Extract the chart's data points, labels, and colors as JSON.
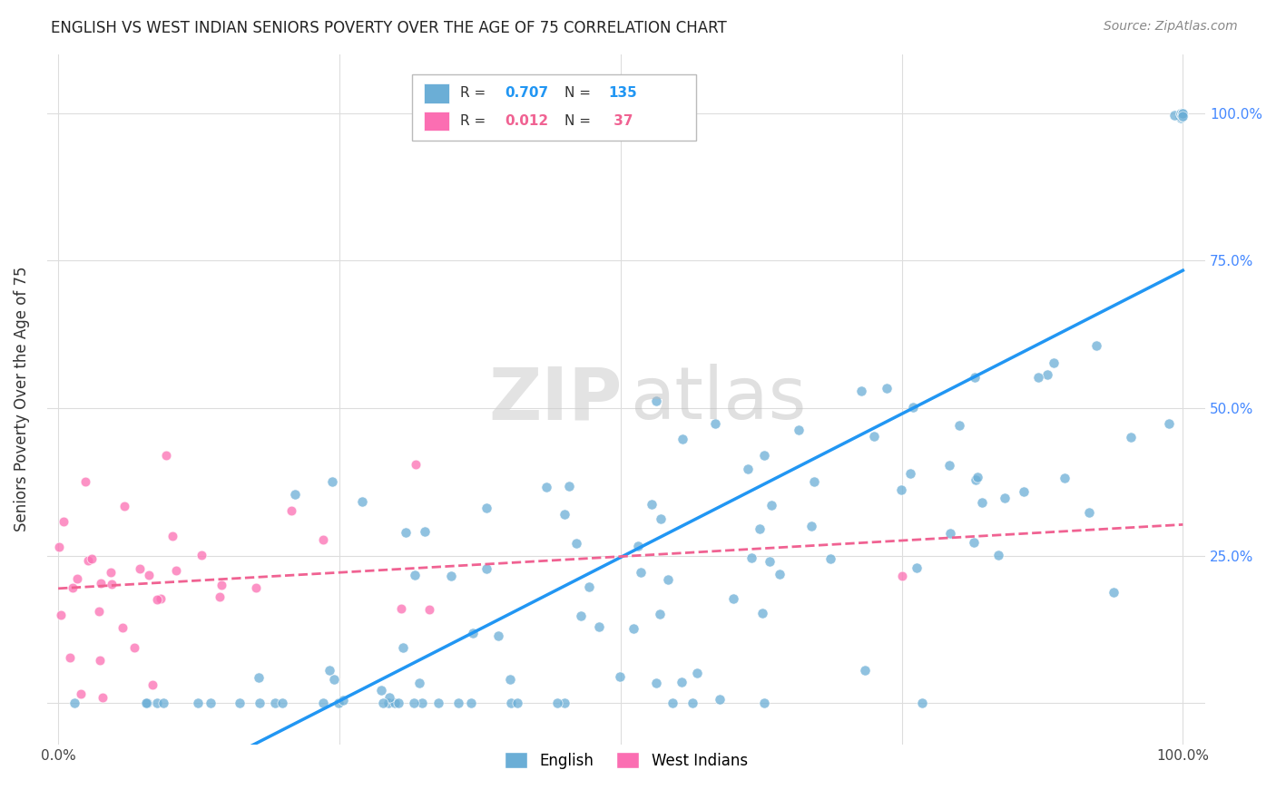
{
  "title": "ENGLISH VS WEST INDIAN SENIORS POVERTY OVER THE AGE OF 75 CORRELATION CHART",
  "source": "Source: ZipAtlas.com",
  "ylabel": "Seniors Poverty Over the Age of 75",
  "bg_color": "#ffffff",
  "english_color": "#6baed6",
  "west_indian_color": "#fb6eb2",
  "english_line_color": "#2196F3",
  "west_indian_line_color": "#f06292",
  "R_english": 0.707,
  "N_english": 135,
  "R_west_indian": 0.012,
  "N_west_indian": 37,
  "grid_color": "#dddddd",
  "watermark_zip_color": "#cccccc",
  "watermark_atlas_color": "#bbbbbb"
}
